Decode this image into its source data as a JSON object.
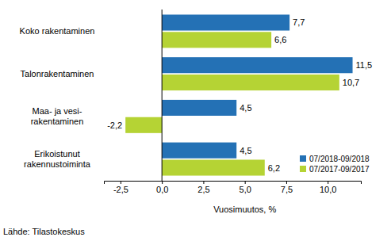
{
  "chart_data": {
    "type": "bar",
    "orientation": "horizontal",
    "categories": [
      "Koko rakentaminen",
      "Talonrakentaminen",
      "Maa- ja vesi-\nrakentaminen",
      "Erikoistunut\nrakennustoiminta"
    ],
    "series": [
      {
        "name": "07/2018-09/2018",
        "color": "#2471b5",
        "values": [
          7.7,
          11.5,
          4.5,
          4.5
        ],
        "value_labels": [
          "7,7",
          "11,5",
          "4,5",
          "4,5"
        ]
      },
      {
        "name": "07/2017-09/2017",
        "color": "#b5d334",
        "values": [
          6.6,
          10.7,
          -2.2,
          6.2
        ],
        "value_labels": [
          "6,6",
          "10,7",
          "-2,2",
          "6,2"
        ]
      }
    ],
    "xlim": [
      -3.5,
      12
    ],
    "xticks": [
      {
        "value": -2.5,
        "label": "-2,5"
      },
      {
        "value": 0,
        "label": "0,0"
      },
      {
        "value": 2.5,
        "label": "2,5"
      },
      {
        "value": 5,
        "label": "5,0"
      },
      {
        "value": 7.5,
        "label": "7,5"
      },
      {
        "value": 10,
        "label": "10,0"
      }
    ],
    "x_label": "Vuosimuutos, %",
    "source": "Lähde: Tilastokeskus",
    "data_labels": true,
    "grid": false,
    "legend": "lower right"
  }
}
